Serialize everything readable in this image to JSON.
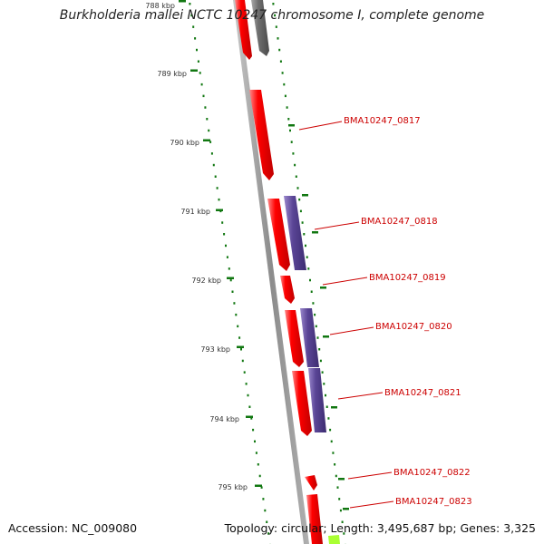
{
  "title": "Burkholderia mallei NCTC 10247 chromosome I, complete genome",
  "accession": {
    "label": "Accession:",
    "value": "NC_009080"
  },
  "summary": {
    "topology_label": "Topology:",
    "topology": "circular",
    "length_label": "Length:",
    "length": "3,495,687 bp",
    "genes_label": "Genes:",
    "genes": "3,325"
  },
  "ticks": [
    "788 kbp",
    "789 kbp",
    "790 kbp",
    "791 kbp",
    "792 kbp",
    "793 kbp",
    "794 kbp",
    "795 kbp"
  ],
  "genes": [
    {
      "label": "BMA10247_0817"
    },
    {
      "label": "BMA10247_0818"
    },
    {
      "label": "BMA10247_0819"
    },
    {
      "label": "BMA10247_0820"
    },
    {
      "label": "BMA10247_0821"
    },
    {
      "label": "BMA10247_0822"
    },
    {
      "label": "BMA10247_0823"
    }
  ],
  "colors": {
    "cds": "#ff0000",
    "cds_highlight": "#ff8080",
    "cds_shadow": "#aa0000",
    "blast_hit": "#5a4596",
    "blast_hit_highlight": "#9a88cc",
    "grey_feature": "#6e6e6e",
    "green_feature": "#aaff33",
    "backbone": "#909090",
    "ruler": "#117711",
    "label_text": "#cc0000",
    "tick_text": "#333333"
  }
}
